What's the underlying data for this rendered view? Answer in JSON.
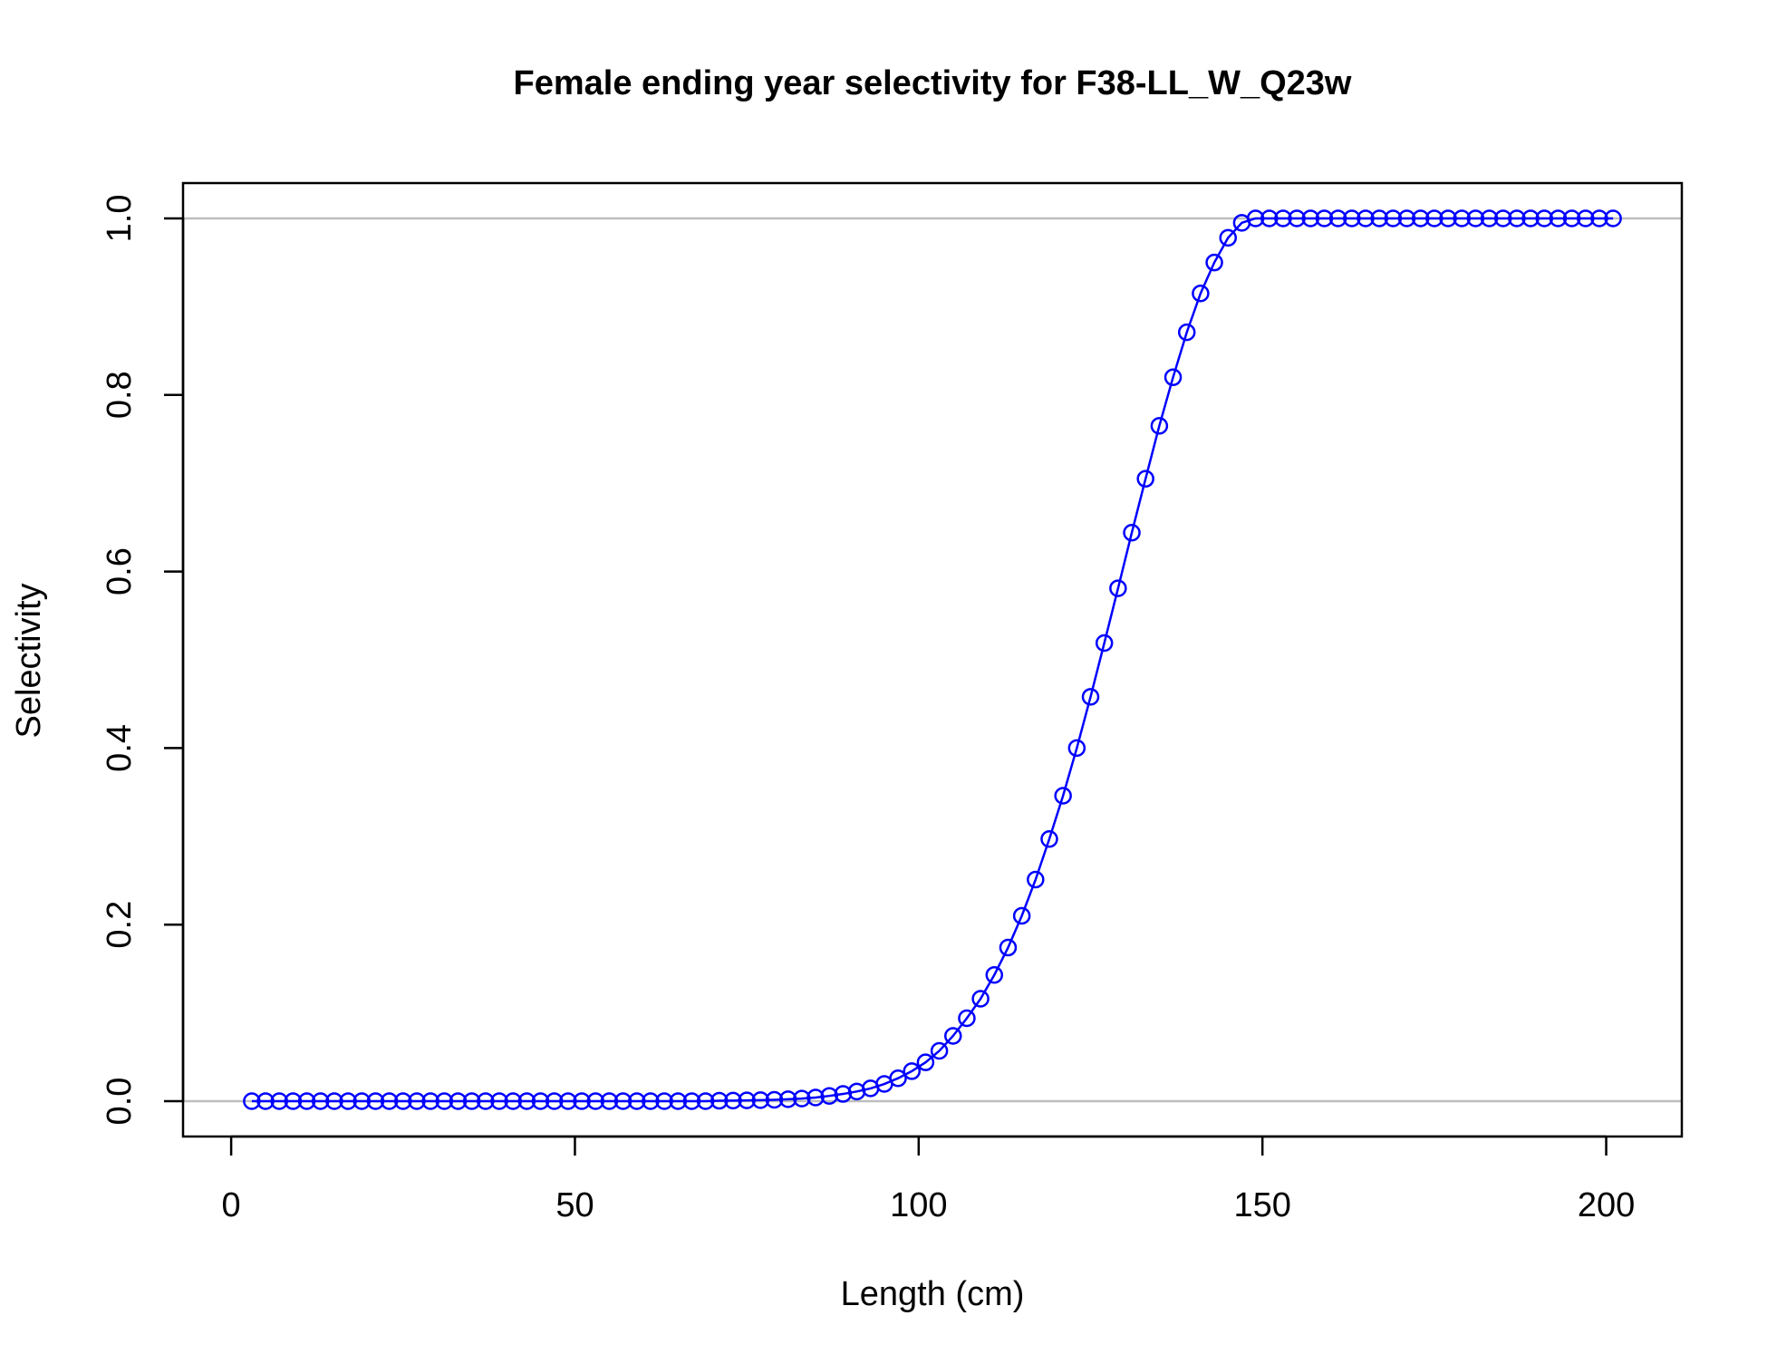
{
  "chart_data": {
    "type": "line",
    "title": "Female ending year selectivity for F38-LL_W_Q23w",
    "xlabel": "Length (cm)",
    "ylabel": "Selectivity",
    "xlim": [
      -7.0,
      211.0
    ],
    "ylim": [
      -0.04,
      1.04
    ],
    "xticks": [
      0,
      50,
      100,
      150,
      200
    ],
    "xtick_labels": [
      "0",
      "50",
      "100",
      "150",
      "200"
    ],
    "yticks": [
      0.0,
      0.2,
      0.4,
      0.6,
      0.8,
      1.0
    ],
    "ytick_labels": [
      "0.0",
      "0.2",
      "0.4",
      "0.6",
      "0.8",
      "1.0"
    ],
    "reference_lines": [
      0,
      1
    ],
    "grid": false,
    "colors": {
      "series": "#0000ff",
      "reference": "#bebebe",
      "axis": "#000000"
    },
    "marker": "open-circle",
    "series": [
      {
        "x": [
          3,
          5,
          7,
          9,
          11,
          13,
          15,
          17,
          19,
          21,
          23,
          25,
          27,
          29,
          31,
          33,
          35,
          37,
          39,
          41,
          43,
          45,
          47,
          49,
          51,
          53,
          55,
          57,
          59,
          61,
          63,
          65,
          67,
          69,
          71,
          73,
          75,
          77,
          79,
          81,
          83,
          85,
          87,
          89,
          91,
          93,
          95,
          97,
          99,
          101,
          103,
          105,
          107,
          109,
          111,
          113,
          115,
          117,
          119,
          121,
          123,
          125,
          127,
          129,
          131,
          133,
          135,
          137,
          139,
          141,
          143,
          145,
          147,
          149,
          151,
          153,
          155,
          157,
          159,
          161,
          163,
          165,
          167,
          169,
          171,
          173,
          175,
          177,
          179,
          181,
          183,
          185,
          187,
          189,
          191,
          193,
          195,
          197,
          199,
          201
        ],
        "y": [
          0,
          0,
          0,
          0,
          0,
          0,
          0,
          0,
          0,
          0,
          0,
          0,
          0,
          0,
          0,
          0,
          0,
          0,
          0,
          0,
          0,
          0,
          0,
          0,
          0,
          0,
          0,
          0,
          0,
          0,
          0,
          0,
          0,
          0,
          0.0005,
          0.0007,
          0.0009,
          0.0012,
          0.0016,
          0.0022,
          0.003,
          0.0042,
          0.006,
          0.0082,
          0.011,
          0.0145,
          0.0195,
          0.026,
          0.034,
          0.044,
          0.057,
          0.074,
          0.094,
          0.116,
          0.143,
          0.174,
          0.21,
          0.251,
          0.297,
          0.346,
          0.4,
          0.458,
          0.519,
          0.581,
          0.644,
          0.705,
          0.765,
          0.82,
          0.871,
          0.915,
          0.95,
          0.978,
          0.995,
          1.0,
          1.0,
          1.0,
          1.0,
          1.0,
          1.0,
          1.0,
          1.0,
          1.0,
          1.0,
          1.0,
          1.0,
          1.0,
          1.0,
          1.0,
          1.0,
          1.0,
          1.0,
          1.0,
          1.0,
          1.0,
          1.0,
          1.0,
          1.0,
          1.0,
          1.0,
          1.0
        ]
      }
    ]
  }
}
